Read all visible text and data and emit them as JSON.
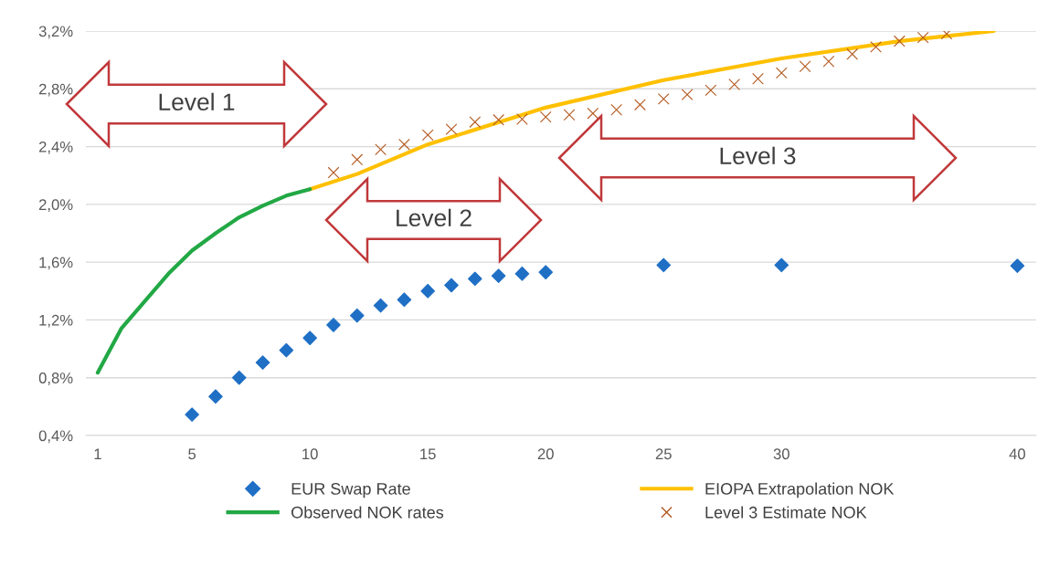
{
  "chart_data": {
    "type": "line",
    "annotations": [
      "Level 1",
      "Level 2",
      "Level 3"
    ],
    "xlim": [
      0.5,
      40.8
    ],
    "xticks": [
      1,
      5,
      10,
      15,
      20,
      25,
      30,
      40
    ],
    "ylim": [
      0.4,
      3.2
    ],
    "yticks": [
      {
        "value": 0.4,
        "label": "0,4%"
      },
      {
        "value": 0.8,
        "label": "0,8%"
      },
      {
        "value": 1.2,
        "label": "1,2%"
      },
      {
        "value": 1.6,
        "label": "1,6%"
      },
      {
        "value": 2.0,
        "label": "2,0%"
      },
      {
        "value": 2.4,
        "label": "2,4%"
      },
      {
        "value": 2.8,
        "label": "2,8%"
      },
      {
        "value": 3.2,
        "label": "3,2%"
      }
    ],
    "grid": "y",
    "legend": "bottom",
    "series": [
      {
        "name": "EUR Swap Rate",
        "type": "scatter",
        "marker": "diamond",
        "color": "#1f6fc5",
        "x": [
          5,
          6,
          7,
          8,
          9,
          10,
          11,
          12,
          13,
          14,
          15,
          16,
          17,
          18,
          19,
          20,
          25,
          30,
          40
        ],
        "values": [
          0.545,
          0.67,
          0.8,
          0.905,
          0.99,
          1.075,
          1.165,
          1.23,
          1.3,
          1.34,
          1.4,
          1.44,
          1.485,
          1.505,
          1.52,
          1.53,
          1.58,
          1.58,
          1.575
        ]
      },
      {
        "name": "EIOPA Extrapolation NOK",
        "type": "line",
        "color": "#ffc000",
        "x": [
          10,
          12,
          15,
          20,
          25,
          30,
          35,
          39
        ],
        "values": [
          2.105,
          2.21,
          2.415,
          2.67,
          2.86,
          3.01,
          3.13,
          3.2
        ]
      },
      {
        "name": "Observed NOK rates",
        "type": "line",
        "color": "#22a845",
        "x": [
          1,
          2,
          3,
          4,
          5,
          6,
          7,
          8,
          9,
          10
        ],
        "values": [
          0.835,
          1.14,
          1.33,
          1.52,
          1.68,
          1.8,
          1.91,
          1.99,
          2.06,
          2.105
        ]
      },
      {
        "name": "Level 3 Estimate NOK",
        "type": "scatter",
        "marker": "cross",
        "color": "#b4581e",
        "x": [
          11,
          12,
          13,
          14,
          15,
          16,
          17,
          18,
          19,
          20,
          21,
          22,
          23,
          24,
          25,
          26,
          27,
          28,
          29,
          30,
          31,
          32,
          33,
          34,
          35,
          36,
          37
        ],
        "values": [
          2.22,
          2.31,
          2.38,
          2.415,
          2.48,
          2.52,
          2.57,
          2.585,
          2.59,
          2.605,
          2.62,
          2.63,
          2.655,
          2.69,
          2.73,
          2.76,
          2.79,
          2.83,
          2.87,
          2.91,
          2.955,
          2.99,
          3.04,
          3.09,
          3.13,
          3.155,
          3.18
        ]
      }
    ]
  }
}
